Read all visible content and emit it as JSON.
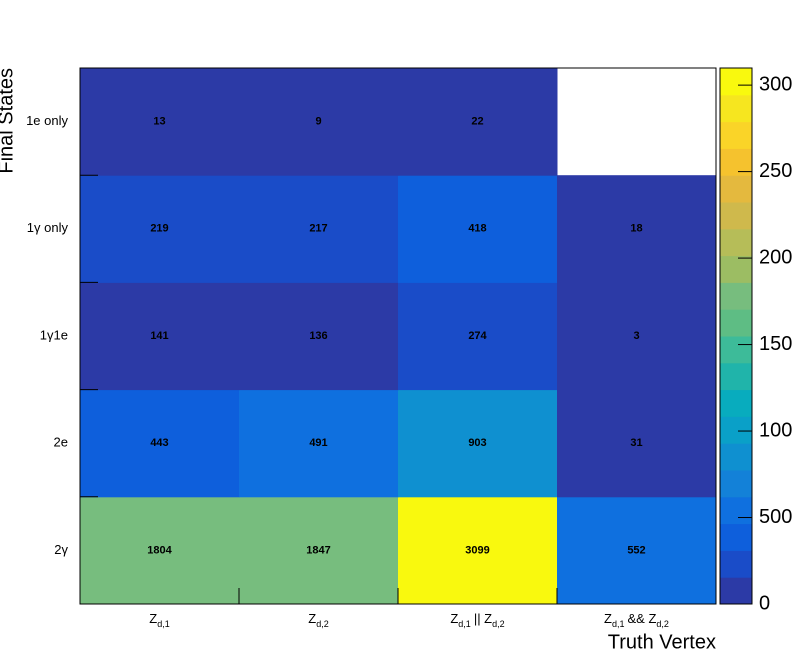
{
  "chart_data": {
    "type": "heatmap",
    "xlabel": "Truth Vertex",
    "ylabel": "Final States",
    "categories": [
      [
        "Z",
        "d,1"
      ],
      [
        "Z",
        "d,2"
      ],
      [
        "Z",
        "d,1",
        "|| Z",
        "d,2"
      ],
      [
        "Z",
        "d,1",
        "&& Z",
        "d,2"
      ]
    ],
    "rows": [
      "2γ",
      "2e",
      "1γ1e",
      "1γ only",
      "1e only"
    ],
    "values": [
      [
        1804,
        1847,
        3099,
        552
      ],
      [
        443,
        491,
        903,
        31
      ],
      [
        141,
        136,
        274,
        3
      ],
      [
        219,
        217,
        418,
        18
      ],
      [
        13,
        9,
        22,
        null
      ]
    ],
    "zlim": [
      0,
      3099
    ],
    "zticks": [
      0,
      500,
      {
        "value": 1000,
        "label": "100"
      },
      {
        "value": 1500,
        "label": "150"
      },
      {
        "value": 2000,
        "label": "200"
      },
      {
        "value": 2500,
        "label": "250"
      },
      {
        "value": 3000,
        "label": "300"
      }
    ],
    "colors": [
      "#2c3aa6",
      "#1a4cc8",
      "#0e5fdc",
      "#0f70df",
      "#1381d8",
      "#0f90d0",
      "#0aa0c8",
      "#08acbe",
      "#20b4aa",
      "#3dbb99",
      "#5ebd84",
      "#77bd7e",
      "#9cbd63",
      "#b6bd58",
      "#cfb94c",
      "#e4b93e",
      "#f5c22e",
      "#fad428",
      "#f6e61f",
      "#f9f90e"
    ]
  }
}
